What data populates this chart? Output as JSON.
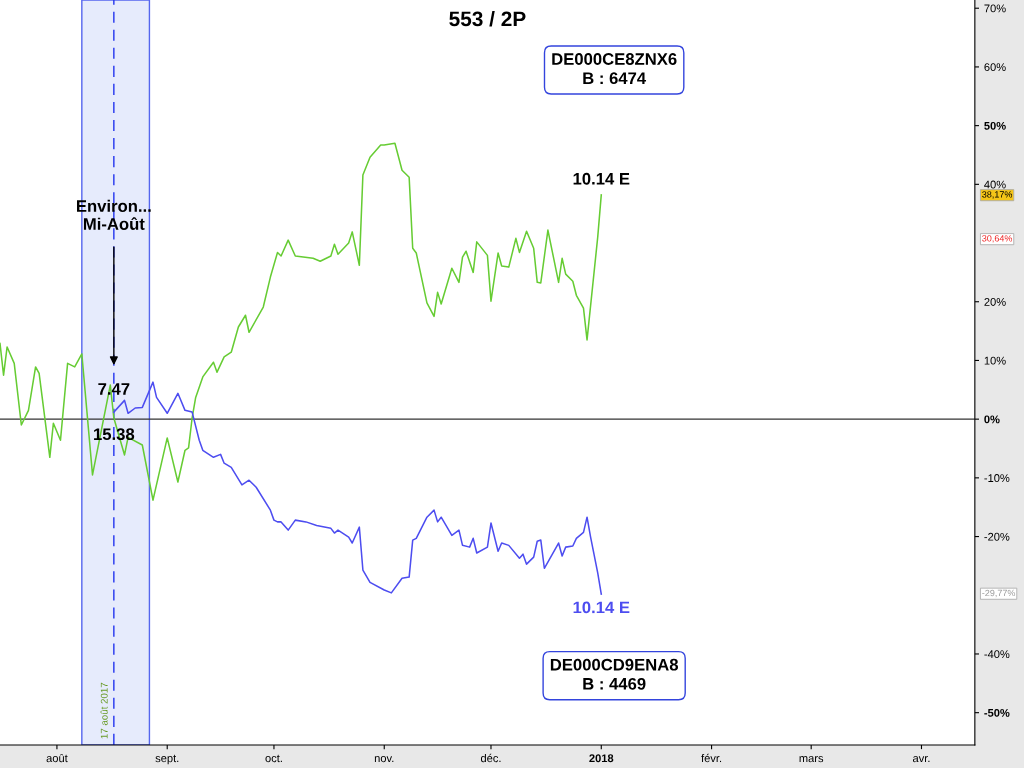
{
  "chart_data": {
    "type": "line",
    "title": "553 / 2P",
    "series": [
      {
        "color": "#66cc33",
        "x": [
          "2017-07-16",
          "2017-07-17",
          "2017-07-18",
          "2017-07-20",
          "2017-07-22",
          "2017-07-24",
          "2017-07-26",
          "2017-07-27",
          "2017-07-30",
          "2017-07-31",
          "2017-08-02",
          "2017-08-04",
          "2017-08-06",
          "2017-08-08",
          "2017-08-11",
          "2017-08-16",
          "2017-08-17",
          "2017-08-20",
          "2017-08-21",
          "2017-08-25",
          "2017-08-28",
          "2017-09-01",
          "2017-09-04",
          "2017-09-06",
          "2017-09-07",
          "2017-09-08",
          "2017-09-09",
          "2017-09-11",
          "2017-09-14",
          "2017-09-15",
          "2017-09-17",
          "2017-09-19",
          "2017-09-21",
          "2017-09-23",
          "2017-09-24",
          "2017-09-28",
          "2017-09-30",
          "2017-10-02",
          "2017-10-03",
          "2017-10-05",
          "2017-10-07",
          "2017-10-12",
          "2017-10-14",
          "2017-10-17",
          "2017-10-18",
          "2017-10-19",
          "2017-10-22",
          "2017-10-23",
          "2017-10-25",
          "2017-10-26",
          "2017-10-28",
          "2017-10-31",
          "2017-11-01",
          "2017-11-04",
          "2017-11-06",
          "2017-11-08",
          "2017-11-09",
          "2017-11-10",
          "2017-11-13",
          "2017-11-15",
          "2017-11-16",
          "2017-11-17",
          "2017-11-20",
          "2017-11-22",
          "2017-11-23",
          "2017-11-24",
          "2017-11-26",
          "2017-11-27",
          "2017-11-30",
          "2017-12-01",
          "2017-12-03",
          "2017-12-04",
          "2017-12-06",
          "2017-12-08",
          "2017-12-09",
          "2017-12-11",
          "2017-12-13",
          "2017-12-14",
          "2017-12-15",
          "2017-12-17",
          "2017-12-20",
          "2017-12-21",
          "2017-12-22",
          "2017-12-24",
          "2017-12-25",
          "2017-12-27",
          "2017-12-28",
          "2017-12-31",
          "2018-01-01"
        ],
        "values": [
          12.9,
          7.5,
          12.3,
          9.5,
          -1.0,
          1.5,
          8.9,
          7.8,
          -6.5,
          -0.7,
          -3.6,
          9.5,
          8.9,
          11.1,
          -9.5,
          5.8,
          0.2,
          -6.1,
          -3.1,
          -4.4,
          -13.8,
          -3.2,
          -10.7,
          -5.3,
          -4.9,
          0.2,
          3.7,
          7.2,
          9.7,
          8.0,
          10.6,
          11.4,
          15.7,
          17.7,
          14.8,
          19.1,
          24.2,
          28.4,
          27.8,
          30.5,
          27.8,
          27.4,
          26.9,
          27.8,
          29.8,
          28.1,
          30.0,
          31.9,
          26.2,
          41.6,
          44.6,
          46.7,
          46.7,
          47.0,
          42.4,
          41.2,
          29.1,
          28.3,
          19.8,
          17.5,
          21.6,
          19.6,
          25.7,
          23.3,
          27.6,
          28.6,
          25.0,
          30.2,
          27.9,
          20.1,
          28.3,
          26.1,
          25.9,
          30.8,
          28.4,
          32.0,
          29.1,
          23.3,
          23.2,
          32.2,
          23.3,
          27.4,
          24.7,
          23.5,
          21.1,
          18.9,
          13.5,
          31.0,
          38.2
        ]
      },
      {
        "color": "#4d4df0",
        "x": [
          "2017-08-17",
          "2017-08-20",
          "2017-08-21",
          "2017-08-23",
          "2017-08-25",
          "2017-08-28",
          "2017-08-29",
          "2017-09-01",
          "2017-09-04",
          "2017-09-06",
          "2017-09-08",
          "2017-09-10",
          "2017-09-11",
          "2017-09-14",
          "2017-09-16",
          "2017-09-17",
          "2017-09-19",
          "2017-09-22",
          "2017-09-24",
          "2017-09-26",
          "2017-09-30",
          "2017-10-01",
          "2017-10-02",
          "2017-10-03",
          "2017-10-05",
          "2017-10-07",
          "2017-10-10",
          "2017-10-13",
          "2017-10-17",
          "2017-10-18",
          "2017-10-19",
          "2017-10-22",
          "2017-10-23",
          "2017-10-25",
          "2017-10-26",
          "2017-10-28",
          "2017-11-01",
          "2017-11-03",
          "2017-11-06",
          "2017-11-08",
          "2017-11-09",
          "2017-11-10",
          "2017-11-13",
          "2017-11-15",
          "2017-11-16",
          "2017-11-17",
          "2017-11-20",
          "2017-11-22",
          "2017-11-23",
          "2017-11-25",
          "2017-11-26",
          "2017-11-27",
          "2017-11-30",
          "2017-12-01",
          "2017-12-03",
          "2017-12-04",
          "2017-12-06",
          "2017-12-09",
          "2017-12-10",
          "2017-12-11",
          "2017-12-13",
          "2017-12-14",
          "2017-12-15",
          "2017-12-16",
          "2017-12-20",
          "2017-12-21",
          "2017-12-22",
          "2017-12-24",
          "2017-12-25",
          "2017-12-27",
          "2017-12-28",
          "2017-12-29",
          "2017-12-31",
          "2018-01-01"
        ],
        "values": [
          1.2,
          3.2,
          1.0,
          1.9,
          2.0,
          6.3,
          3.7,
          1.0,
          4.4,
          1.5,
          1.2,
          -3.6,
          -5.3,
          -6.5,
          -6.0,
          -7.5,
          -8.2,
          -11.2,
          -10.4,
          -11.6,
          -15.5,
          -17.2,
          -17.5,
          -17.5,
          -18.9,
          -17.2,
          -17.5,
          -18.1,
          -18.6,
          -19.4,
          -18.9,
          -20.1,
          -21.1,
          -18.4,
          -25.7,
          -27.8,
          -29.1,
          -29.6,
          -27.1,
          -26.9,
          -20.6,
          -20.3,
          -16.7,
          -15.5,
          -17.5,
          -16.7,
          -19.8,
          -18.9,
          -21.5,
          -21.8,
          -20.3,
          -22.8,
          -21.8,
          -17.7,
          -22.5,
          -21.1,
          -21.5,
          -23.7,
          -23.0,
          -24.7,
          -23.5,
          -20.8,
          -20.6,
          -25.4,
          -21.1,
          -23.3,
          -21.8,
          -21.6,
          -20.3,
          -19.3,
          -16.7,
          -20.1,
          -26.2,
          -29.8
        ]
      }
    ],
    "xlim": [
      "2017-07-16",
      "2018-04-16"
    ],
    "xticks": [
      {
        "value": "2017-08-01",
        "label": "août"
      },
      {
        "value": "2017-09-01",
        "label": "sept."
      },
      {
        "value": "2017-10-01",
        "label": "oct."
      },
      {
        "value": "2017-11-01",
        "label": "nov."
      },
      {
        "value": "2017-12-01",
        "label": "déc."
      },
      {
        "value": "2018-01-01",
        "label": "2018"
      },
      {
        "value": "2018-02-01",
        "label": "févr."
      },
      {
        "value": "2018-03-01",
        "label": "mars"
      },
      {
        "value": "2018-04-01",
        "label": "avr."
      }
    ],
    "ylim": [
      -55.5,
      71.4
    ],
    "yticks": [
      {
        "value": 70,
        "label": "70%"
      },
      {
        "value": 60,
        "label": "60%"
      },
      {
        "value": 50,
        "label": "50%"
      },
      {
        "value": 40,
        "label": "40%"
      },
      {
        "value": 20,
        "label": "20%"
      },
      {
        "value": 10,
        "label": "10%"
      },
      {
        "value": 0,
        "label": "0%"
      },
      {
        "value": -10,
        "label": "-10%"
      },
      {
        "value": -20,
        "label": "-20%"
      },
      {
        "value": -40,
        "label": "-40%"
      },
      {
        "value": -50,
        "label": "-50%"
      }
    ],
    "ref_lines": [
      {
        "axis": "x",
        "value": "2017-08-17",
        "label": "17 août 2017",
        "color": "#2233ee",
        "line_style": "dashed"
      },
      {
        "axis": "y",
        "value": 0,
        "color": "#333333",
        "line_style": "solid"
      }
    ],
    "bands": [
      {
        "axis": "x",
        "from": "2017-08-08",
        "to": "2017-08-27",
        "color": "#e6ebfc"
      }
    ],
    "annotations": [
      {
        "text": "Environ...\nMi-Août",
        "x": "2017-08-17",
        "y": 9.2
      },
      {
        "text": "7.47",
        "x": "2017-08-17",
        "y": 4.9
      },
      {
        "text": "15.38",
        "x": "2017-08-17",
        "y": -2.8
      },
      {
        "text": "10.14 E",
        "x": "2018-01-01",
        "y": 38.2
      },
      {
        "text": "10.14 E",
        "x": "2018-01-01",
        "y": -29.8
      },
      "DE000CE8ZNX6\nB : 6474",
      "DE000CD9ENA8\nB : 4469",
      "38,17%",
      "30,64%",
      "-29,77%"
    ],
    "grid": false,
    "line_style": "solid",
    "marker": "none"
  }
}
